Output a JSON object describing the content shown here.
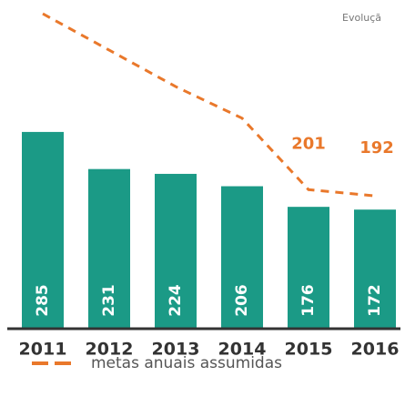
{
  "chart_data": {
    "type": "bar",
    "title": "Evoluçã",
    "categories": [
      "2011",
      "2012",
      "2013",
      "2014",
      "2015",
      "2016"
    ],
    "series": [
      {
        "name": null,
        "color": "#1b9a86",
        "values": [
          285,
          231,
          224,
          206,
          176,
          172
        ]
      },
      {
        "name": "metas anuais assumidas",
        "type": "line",
        "color": "#e9782b",
        "values": [
          457,
          404,
          351,
          305,
          201,
          192
        ],
        "value_labels": [
          null,
          null,
          null,
          null,
          "201",
          "192"
        ]
      }
    ],
    "ylim": [
      0,
      477
    ]
  }
}
